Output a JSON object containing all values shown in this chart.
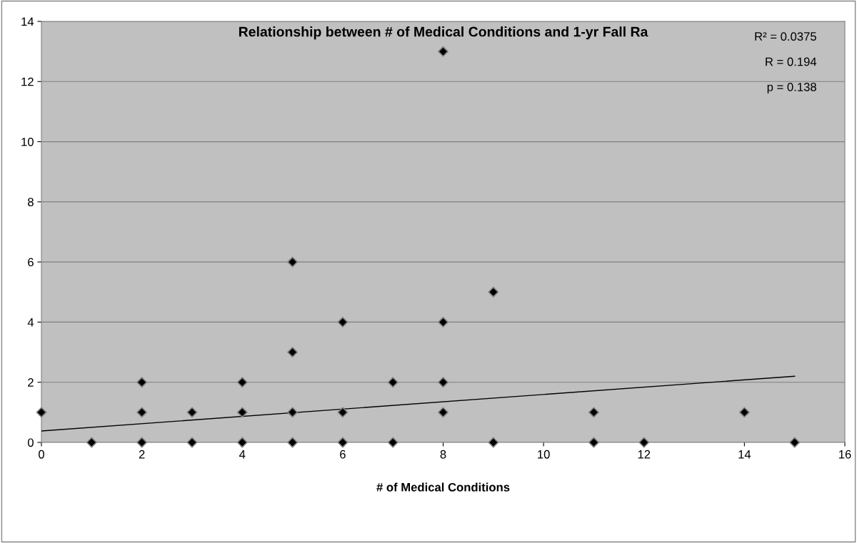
{
  "chart_data": {
    "type": "scatter",
    "title": "Relationship between # of Medical Conditions and 1-yr Fall Ra",
    "xlabel": "# of Medical Conditions",
    "annotations": [
      "R² = 0.0375",
      "R = 0.194",
      "p = 0.138"
    ],
    "xlim": [
      0,
      16
    ],
    "xticks": [
      0,
      2,
      4,
      6,
      8,
      10,
      12,
      14,
      16
    ],
    "ylim": [
      0,
      14
    ],
    "yticks": [
      0,
      2,
      4,
      6,
      8,
      10,
      12,
      14
    ],
    "grid": "y",
    "marker": "diamond",
    "series": [
      {
        "color": "#000000",
        "x": [
          0,
          1,
          2,
          2,
          2,
          3,
          3,
          4,
          4,
          4,
          5,
          5,
          5,
          5,
          6,
          6,
          6,
          7,
          7,
          8,
          8,
          8,
          8,
          9,
          9,
          11,
          11,
          12,
          14,
          15
        ],
        "values": [
          1,
          0,
          0,
          1,
          2,
          0,
          1,
          0,
          1,
          2,
          0,
          1,
          3,
          6,
          0,
          1,
          4,
          0,
          2,
          1,
          2,
          4,
          13,
          0,
          5,
          0,
          1,
          0,
          1,
          0
        ]
      },
      {
        "type": "line",
        "color": "#000000",
        "marker": "none",
        "line_style": "solid",
        "x": [
          0,
          15
        ],
        "values": [
          0.38,
          2.2
        ]
      }
    ]
  }
}
